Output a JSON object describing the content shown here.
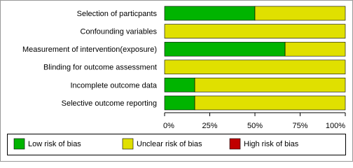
{
  "chart_data": {
    "type": "stacked-bar-horizontal",
    "categories": [
      "Selection of particpants",
      "Confounding variables",
      "Measurement of intervention(exposure)",
      "Blinding for outcome assessment",
      "Incomplete outcome data",
      "Selective outcome reporting"
    ],
    "series": [
      {
        "name": "Low risk of bias",
        "color": "#00b400",
        "values": [
          50,
          0,
          66.7,
          0,
          16.7,
          16.7
        ]
      },
      {
        "name": "Unclear risk of bias",
        "color": "#e0e000",
        "values": [
          50,
          100,
          33.3,
          100,
          83.3,
          83.3
        ]
      },
      {
        "name": "High risk of bias",
        "color": "#c00000",
        "values": [
          0,
          0,
          0,
          0,
          0,
          0
        ]
      }
    ],
    "xlim": [
      0,
      100
    ],
    "xticks": [
      {
        "value": 0,
        "label": "0%"
      },
      {
        "value": 25,
        "label": "25%"
      },
      {
        "value": 50,
        "label": "50%"
      },
      {
        "value": 75,
        "label": "75%"
      },
      {
        "value": 100,
        "label": "100%"
      }
    ]
  }
}
